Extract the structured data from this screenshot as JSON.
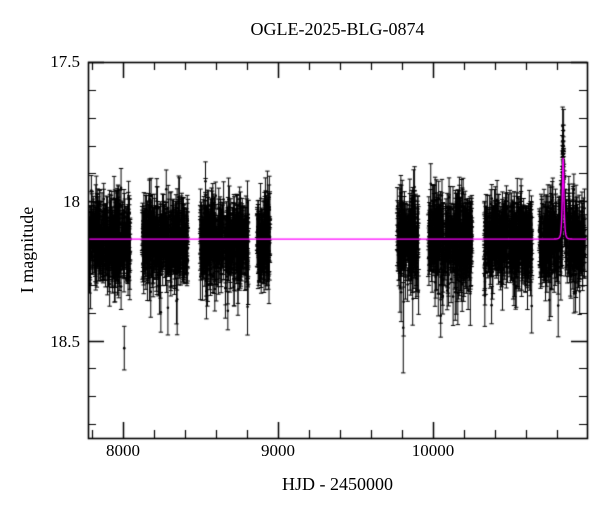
{
  "figure": {
    "title": "OGLE-2025-BLG-0874",
    "xlabel": "HJD - 2450000",
    "ylabel": "I magnitude",
    "x_tick_labels": [
      "8000",
      "9000",
      "10000"
    ],
    "y_tick_labels": [
      "17.5",
      "18",
      "18.5"
    ]
  },
  "chart_data": {
    "type": "scatter",
    "title": "OGLE-2025-BLG-0874",
    "xlabel": "HJD - 2450000",
    "ylabel": "I magnitude",
    "xlim": [
      7774,
      10993
    ],
    "ylim": [
      18.85,
      17.5
    ],
    "y_axis_inverted": true,
    "grid": false,
    "x_ticks_major": [
      8000,
      9000,
      10000
    ],
    "x_minor_step": 200,
    "y_ticks_major": [
      17.5,
      18,
      18.5
    ],
    "y_minor_step": 0.1,
    "marker": {
      "shape": "circle-with-error-bars",
      "color": "#000000",
      "radius": 1.3
    },
    "baseline_mag": 18.136,
    "scatter_sigma": 0.063,
    "model": {
      "description": "magenta baseline with microlensing spike",
      "color": "#ff00ff",
      "baseline_mag": 18.136,
      "event": {
        "t0": 10839,
        "tE": 6,
        "u0": 1.05,
        "peak_mag": 17.84
      }
    },
    "seasons": [
      {
        "hjd_start": 7776,
        "hjd_end": 8046,
        "n_points": 380
      },
      {
        "hjd_start": 8123,
        "hjd_end": 8420,
        "n_points": 430
      },
      {
        "hjd_start": 8497,
        "hjd_end": 8813,
        "n_points": 430
      },
      {
        "hjd_start": 8864,
        "hjd_end": 8948,
        "n_points": 140
      },
      {
        "hjd_start": 9768,
        "hjd_end": 9908,
        "n_points": 210
      },
      {
        "hjd_start": 9968,
        "hjd_end": 10252,
        "n_points": 400
      },
      {
        "hjd_start": 10330,
        "hjd_end": 10639,
        "n_points": 420
      },
      {
        "hjd_start": 10684,
        "hjd_end": 10980,
        "n_points": 430
      }
    ],
    "event_extra_points": {
      "n_points": 16,
      "window_days": 4.5
    },
    "colors": {
      "background": "#ffffff",
      "axis": "#000000",
      "data": "#000000",
      "model": "#ff00ff"
    }
  }
}
